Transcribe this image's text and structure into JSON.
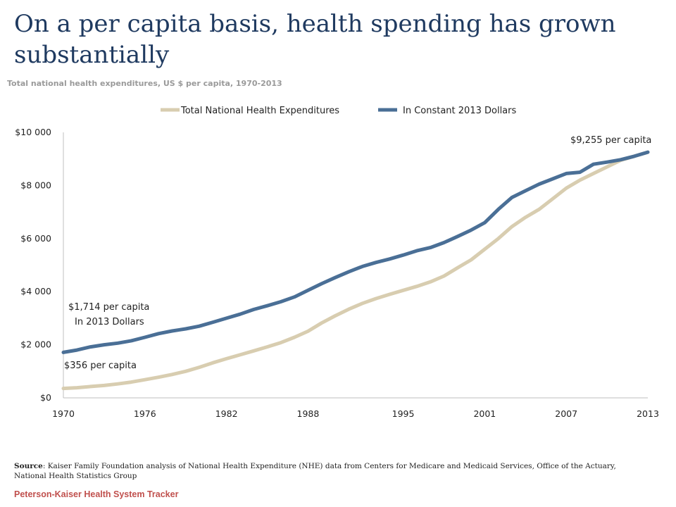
{
  "title": "On a per capita basis, health spending has grown substantially",
  "subtitle": "Total national health expenditures, US $ per capita, 1970-2013",
  "source_label": "Source",
  "source_text": ": Kaiser Family Foundation analysis of National Health Expenditure (NHE) data from Centers for Medicare and Medicaid Services, Office of the Actuary, National Health Statistics Group",
  "footer": "Peterson-Kaiser Health System Tracker",
  "colors": {
    "nominal": "#d8cdb0",
    "constant": "#4a6f96",
    "title": "#1f3a60",
    "footer": "#c0504d"
  },
  "chart_data": {
    "type": "line",
    "title": "",
    "xlabel": "",
    "ylabel": "",
    "x": [
      1970,
      1971,
      1972,
      1973,
      1974,
      1975,
      1976,
      1977,
      1978,
      1979,
      1980,
      1981,
      1982,
      1983,
      1984,
      1985,
      1986,
      1987,
      1988,
      1989,
      1990,
      1991,
      1992,
      1993,
      1994,
      1995,
      1996,
      1997,
      1998,
      1999,
      2000,
      2001,
      2002,
      2003,
      2004,
      2005,
      2006,
      2007,
      2008,
      2009,
      2010,
      2011,
      2012,
      2013
    ],
    "xlim": [
      1970,
      2013
    ],
    "ylim": [
      0,
      10000
    ],
    "x_ticks": [
      "1970",
      "1976",
      "1982",
      "1988",
      "1995",
      "2001",
      "2007",
      "2013"
    ],
    "x_tick_values": [
      1970,
      1976,
      1982,
      1988,
      1995,
      2001,
      2007,
      2013
    ],
    "y_ticks": [
      "$0",
      "$2 000",
      "$4 000",
      "$6 000",
      "$8 000",
      "$10 000"
    ],
    "y_tick_values": [
      0,
      2000,
      4000,
      6000,
      8000,
      10000
    ],
    "grid": false,
    "legend_position": "top",
    "series": [
      {
        "name": "Total National Health Expenditures",
        "color": "#d8cdb0",
        "values": [
          356,
          381,
          427,
          467,
          525,
          595,
          685,
          778,
          880,
          1000,
          1150,
          1320,
          1475,
          1620,
          1770,
          1920,
          2080,
          2280,
          2510,
          2820,
          3090,
          3340,
          3560,
          3740,
          3900,
          4050,
          4200,
          4370,
          4590,
          4900,
          5200,
          5600,
          6000,
          6450,
          6800,
          7100,
          7500,
          7900,
          8200,
          8450,
          8700,
          8950,
          9100,
          9255
        ]
      },
      {
        "name": "In Constant 2013 Dollars",
        "color": "#4a6f96",
        "values": [
          1714,
          1800,
          1920,
          2000,
          2060,
          2150,
          2280,
          2420,
          2520,
          2600,
          2700,
          2850,
          3000,
          3150,
          3330,
          3470,
          3620,
          3800,
          4050,
          4300,
          4530,
          4750,
          4950,
          5100,
          5230,
          5380,
          5540,
          5660,
          5850,
          6080,
          6320,
          6600,
          7100,
          7550,
          7800,
          8050,
          8250,
          8450,
          8500,
          8800,
          8880,
          8970,
          9100,
          9255
        ]
      }
    ],
    "annotations": [
      {
        "text": "$9,255 per capita"
      },
      {
        "text": "$1,714 per capita"
      },
      {
        "text": "In 2013 Dollars"
      },
      {
        "text": "$356 per capita"
      }
    ]
  }
}
